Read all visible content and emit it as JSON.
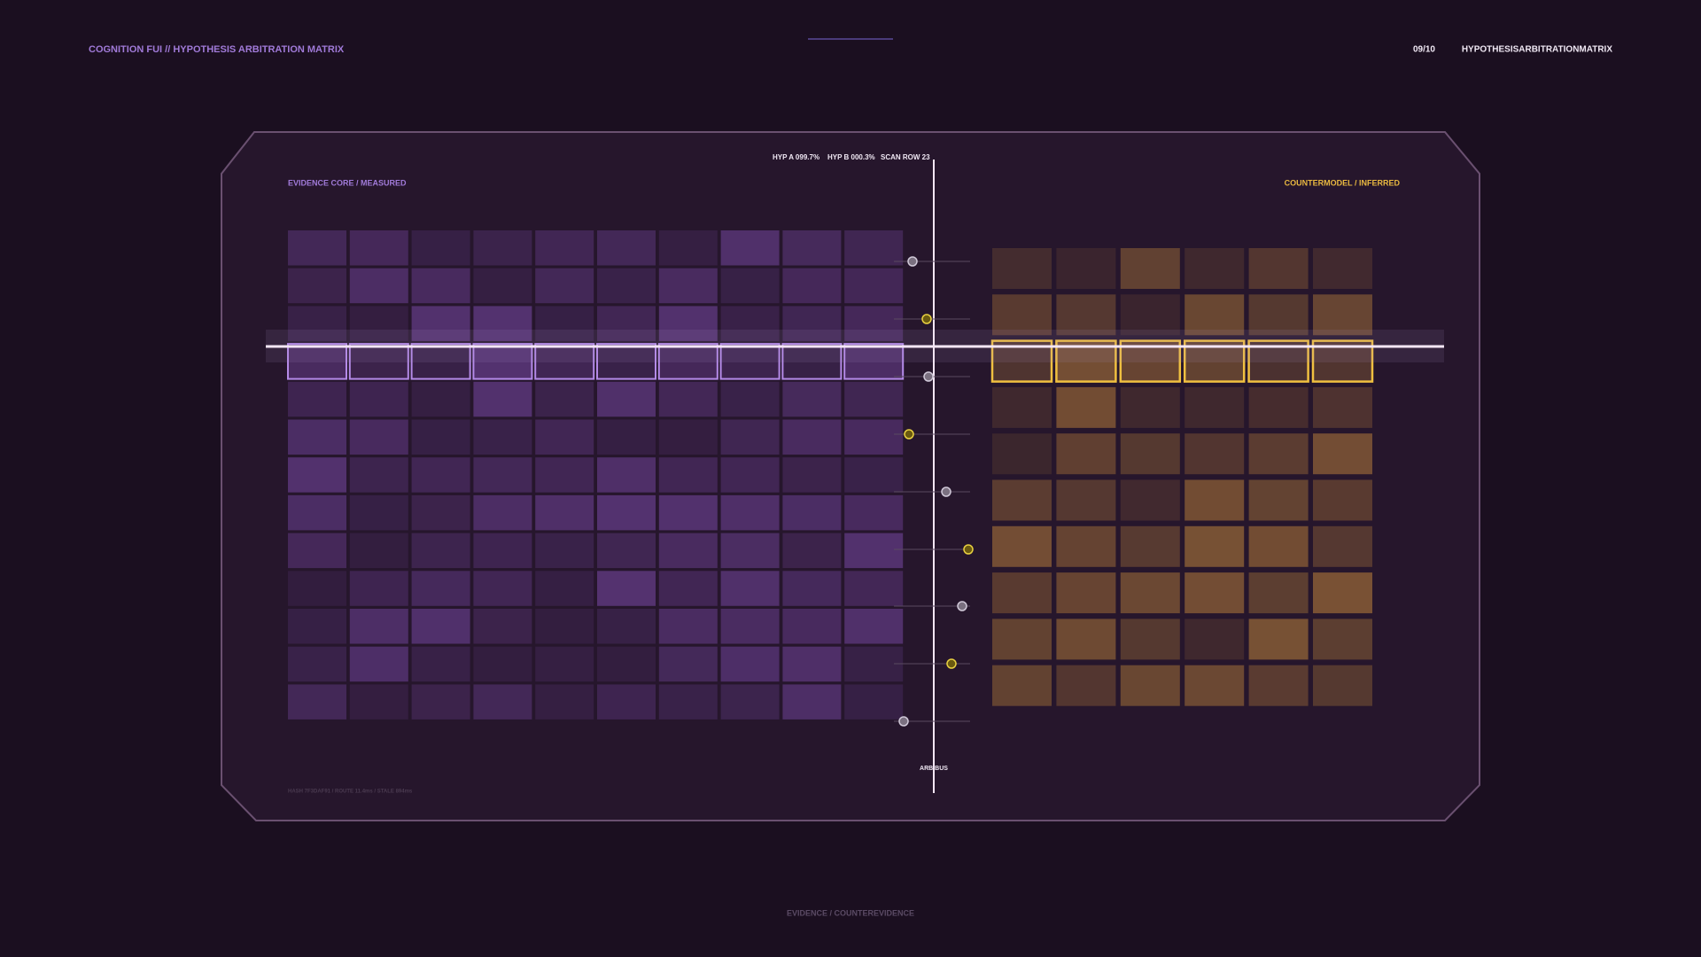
{
  "header": {
    "title": "COGNITION FUI // HYPOTHESIS ARBITRATION MATRIX",
    "page": "09/10",
    "page_title": "HYPOTHESISARBITRATIONMATRIX"
  },
  "readout": {
    "hyp_a": "HYP A 099.7%",
    "hyp_b": "HYP B 000.3%",
    "scan": "SCAN ROW 23"
  },
  "panels": {
    "left": "EVIDENCE CORE / MEASURED",
    "right": "COUNTERMODEL / INFERRED",
    "bus": "ARB BUS",
    "footnote": "HASH 7F3DAF91  /  ROUTE 11.4ms  /  STALE 894ms"
  },
  "footer": "EVIDENCE / COUNTEREVIDENCE"
}
